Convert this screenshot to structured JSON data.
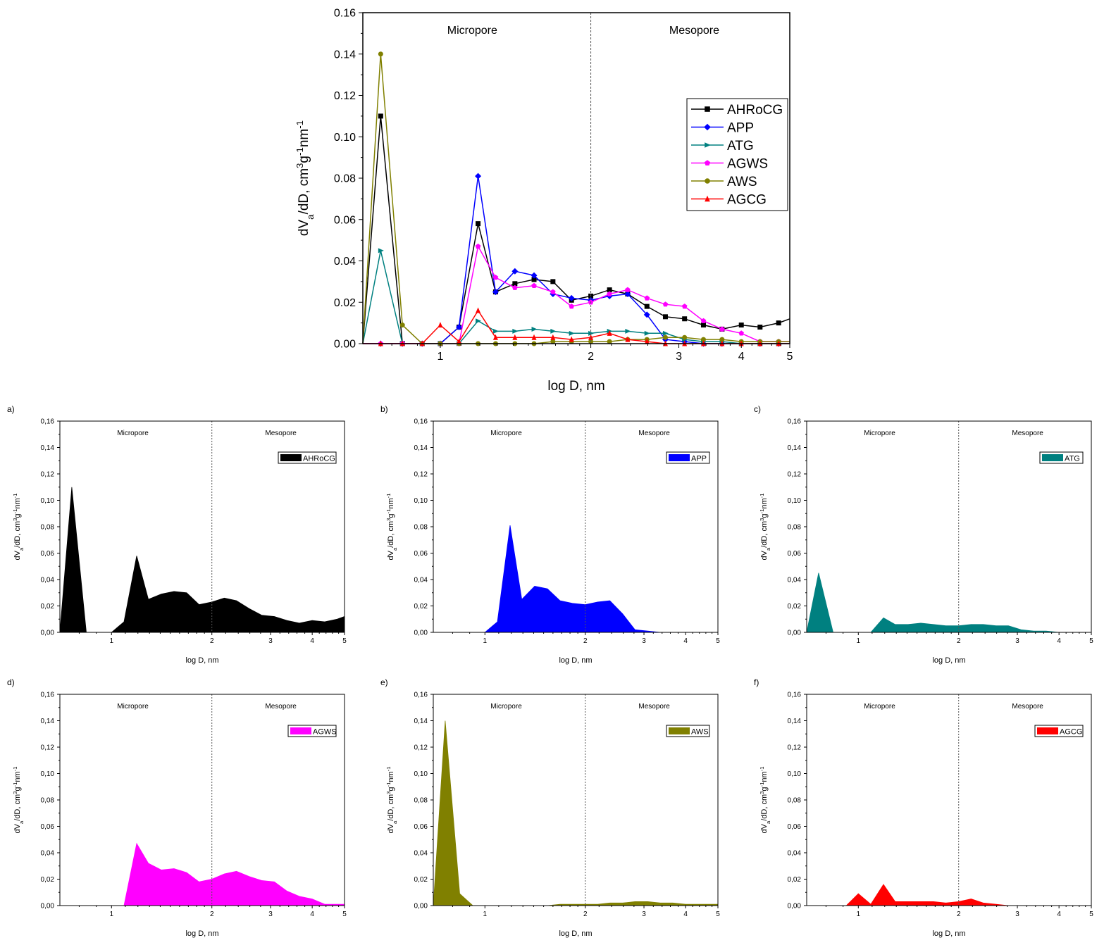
{
  "chart_data": [
    {
      "id": "main",
      "panel_label": "",
      "type": "line",
      "xlabel": "log D, nm",
      "ylabel": "dV<sub>a</sub>/dD, cm<sup>3</sup>g<sup>-1</sup>nm<sup>-1</sup>",
      "x_scale": "log",
      "xlim": [
        0.7,
        5
      ],
      "ylim": [
        0,
        0.16
      ],
      "x_ticks": [
        1,
        2,
        3,
        4,
        5
      ],
      "y_ticks": [
        0,
        0.02,
        0.04,
        0.06,
        0.08,
        0.1,
        0.12,
        0.14,
        0.16
      ],
      "y_tick_labels": [
        "0.00",
        "0.02",
        "0.04",
        "0.06",
        "0.08",
        "0.10",
        "0.12",
        "0.14",
        "0.16"
      ],
      "divider_x": 2,
      "region_labels": [
        "Micropore",
        "Mesopore"
      ],
      "legend_position": "upper-right",
      "series_names": [
        "AHRoCG",
        "APP",
        "ATG",
        "AGWS",
        "AWS",
        "AGCG"
      ]
    },
    {
      "id": "a",
      "panel_label": "a)",
      "type": "area",
      "series_index": 0,
      "xlabel": "log D, nm",
      "ylabel": "dV<sub>a</sub>/dD, cm<sup>3</sup>g<sup>-1</sup>nm<sup>-1</sup>",
      "x_scale": "log",
      "xlim": [
        0.7,
        5
      ],
      "ylim": [
        0,
        0.16
      ],
      "x_ticks": [
        1,
        2,
        3,
        4,
        5
      ],
      "y_tick_labels": [
        "0,00",
        "0,02",
        "0,04",
        "0,06",
        "0,08",
        "0,10",
        "0,12",
        "0,14",
        "0,16"
      ],
      "region_labels": [
        "Micropore",
        "Mesopore"
      ],
      "legend_position": "upper-right"
    },
    {
      "id": "b",
      "panel_label": "b)",
      "type": "area",
      "series_index": 1,
      "xlabel": "log D, nm",
      "ylabel": "dV<sub>a</sub>/dD, cm<sup>3</sup>g<sup>-1</sup>nm<sup>-1</sup>",
      "x_scale": "log",
      "xlim": [
        0.7,
        5
      ],
      "ylim": [
        0,
        0.16
      ],
      "x_ticks": [
        1,
        2,
        3,
        4,
        5
      ],
      "y_tick_labels": [
        "0,00",
        "0,02",
        "0,04",
        "0,06",
        "0,08",
        "0,10",
        "0,12",
        "0,14",
        "0,16"
      ],
      "region_labels": [
        "Micropore",
        "Mesopore"
      ],
      "legend_position": "upper-right"
    },
    {
      "id": "c",
      "panel_label": "c)",
      "type": "area",
      "series_index": 2,
      "xlabel": "log D, nm",
      "ylabel": "dV<sub>a</sub>/dD, cm<sup>3</sup>g<sup>-1</sup>nm<sup>-1</sup>",
      "x_scale": "log",
      "xlim": [
        0.7,
        5
      ],
      "ylim": [
        0,
        0.16
      ],
      "x_ticks": [
        1,
        2,
        3,
        4,
        5
      ],
      "y_tick_labels": [
        "0,00",
        "0,02",
        "0,04",
        "0,06",
        "0,08",
        "0,10",
        "0,12",
        "0,14",
        "0,16"
      ],
      "region_labels": [
        "Micropore",
        "Mesopore"
      ],
      "legend_position": "upper-right"
    },
    {
      "id": "d",
      "panel_label": "d)",
      "type": "area",
      "series_index": 3,
      "xlabel": "log D, nm",
      "ylabel": "dV<sub>a</sub>/dD, cm<sup>3</sup>g<sup>-1</sup>nm<sup>-1</sup>",
      "x_scale": "log",
      "xlim": [
        0.7,
        5
      ],
      "ylim": [
        0,
        0.16
      ],
      "x_ticks": [
        1,
        2,
        3,
        4,
        5
      ],
      "y_tick_labels": [
        "0,00",
        "0,02",
        "0,04",
        "0,06",
        "0,08",
        "0,10",
        "0,12",
        "0,14",
        "0,16"
      ],
      "region_labels": [
        "Micropore",
        "Mesopore"
      ],
      "legend_position": "upper-right"
    },
    {
      "id": "e",
      "panel_label": "e)",
      "type": "area",
      "series_index": 4,
      "xlabel": "log D, nm",
      "ylabel": "dV<sub>a</sub>/dD, cm<sup>3</sup>g<sup>-1</sup>nm<sup>-1</sup>",
      "x_scale": "log",
      "xlim": [
        0.7,
        5
      ],
      "ylim": [
        0,
        0.16
      ],
      "x_ticks": [
        1,
        2,
        3,
        4,
        5
      ],
      "y_tick_labels": [
        "0,00",
        "0,02",
        "0,04",
        "0,06",
        "0,08",
        "0,10",
        "0,12",
        "0,14",
        "0,16"
      ],
      "region_labels": [
        "Micropore",
        "Mesopore"
      ],
      "legend_position": "upper-right"
    },
    {
      "id": "f",
      "panel_label": "f)",
      "type": "area",
      "series_index": 5,
      "xlabel": "log D, nm",
      "ylabel": "dV<sub>a</sub>/dD, cm<sup>3</sup>g<sup>-1</sup>nm<sup>-1</sup>",
      "x_scale": "log",
      "xlim": [
        0.7,
        5
      ],
      "ylim": [
        0,
        0.16
      ],
      "x_ticks": [
        1,
        2,
        3,
        4,
        5
      ],
      "y_tick_labels": [
        "0,00",
        "0,02",
        "0,04",
        "0,06",
        "0,08",
        "0,10",
        "0,12",
        "0,14",
        "0,16"
      ],
      "region_labels": [
        "Micropore",
        "Mesopore"
      ],
      "legend_position": "upper-right"
    }
  ],
  "x": [
    0.7,
    0.76,
    0.84,
    0.92,
    1.0,
    1.09,
    1.19,
    1.29,
    1.41,
    1.54,
    1.68,
    1.83,
    2.0,
    2.18,
    2.37,
    2.59,
    2.82,
    3.08,
    3.36,
    3.66,
    4.0,
    4.36,
    4.75,
    5.0
  ],
  "series": [
    {
      "name": "AHRoCG",
      "color": "#000000",
      "marker": "square",
      "values": [
        0.0,
        0.11,
        0.0,
        0.0,
        0.0,
        0.008,
        0.058,
        0.025,
        0.029,
        0.031,
        0.03,
        0.021,
        0.023,
        0.026,
        0.024,
        0.018,
        0.013,
        0.012,
        0.009,
        0.007,
        0.009,
        0.008,
        0.01,
        0.012
      ]
    },
    {
      "name": "APP",
      "color": "#0000ff",
      "marker": "diamond",
      "values": [
        0.0,
        0.0,
        0.0,
        0.0,
        0.0,
        0.008,
        0.081,
        0.025,
        0.035,
        0.033,
        0.024,
        0.022,
        0.021,
        0.023,
        0.024,
        0.014,
        0.002,
        0.001,
        0.0,
        0.0,
        0.0,
        0.0,
        0.0,
        0.0
      ]
    },
    {
      "name": "ATG",
      "color": "#008080",
      "marker": "triangle-right",
      "values": [
        0.0,
        0.045,
        0.0,
        0.0,
        0.0,
        0.0,
        0.011,
        0.006,
        0.006,
        0.007,
        0.006,
        0.005,
        0.005,
        0.006,
        0.006,
        0.005,
        0.005,
        0.002,
        0.001,
        0.001,
        0.0,
        0.0,
        0.0,
        0.0
      ]
    },
    {
      "name": "AGWS",
      "color": "#ff00ff",
      "marker": "pentagon",
      "values": [
        0.0,
        0.0,
        0.0,
        0.0,
        0.0,
        0.0,
        0.047,
        0.032,
        0.027,
        0.028,
        0.025,
        0.018,
        0.02,
        0.024,
        0.026,
        0.022,
        0.019,
        0.018,
        0.011,
        0.007,
        0.005,
        0.001,
        0.001,
        0.001
      ]
    },
    {
      "name": "AWS",
      "color": "#808000",
      "marker": "circle",
      "values": [
        0.0,
        0.14,
        0.009,
        0.0,
        0.0,
        0.0,
        0.0,
        0.0,
        0.0,
        0.0,
        0.001,
        0.001,
        0.001,
        0.001,
        0.002,
        0.002,
        0.003,
        0.003,
        0.002,
        0.002,
        0.001,
        0.001,
        0.001,
        0.001
      ]
    },
    {
      "name": "AGCG",
      "color": "#ff0000",
      "marker": "triangle-up",
      "values": [
        0.0,
        0.0,
        0.0,
        0.0,
        0.009,
        0.001,
        0.016,
        0.003,
        0.003,
        0.003,
        0.003,
        0.002,
        0.003,
        0.005,
        0.002,
        0.001,
        0.0,
        0.0,
        0.0,
        0.0,
        0.0,
        0.0,
        0.0,
        0.0
      ]
    }
  ]
}
